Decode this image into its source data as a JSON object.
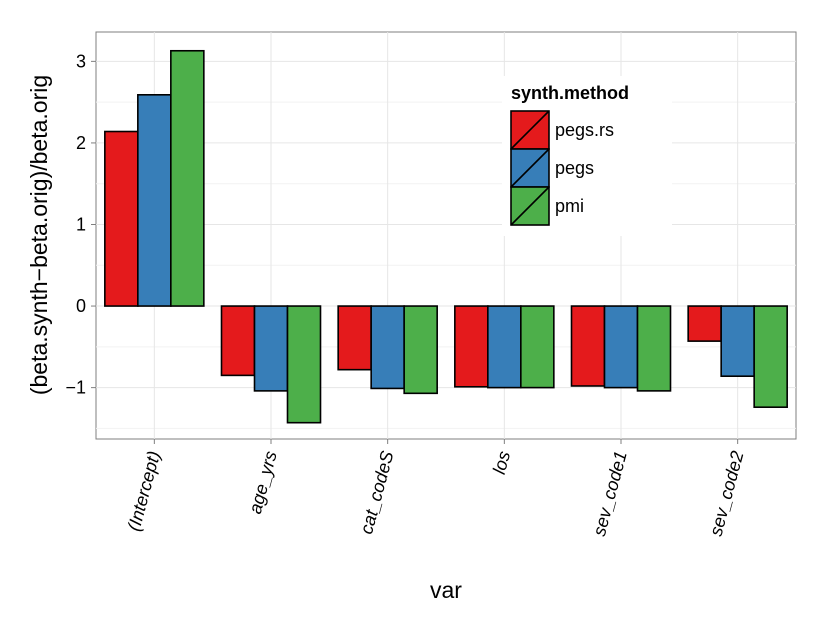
{
  "chart_data": {
    "type": "bar",
    "xlabel": "var",
    "ylabel": "(beta.synth−beta.orig)/beta.orig",
    "categories": [
      "(Intercept)",
      "age_yrs",
      "cat_codeS",
      "los",
      "sev_code1",
      "sev_code2"
    ],
    "series": [
      {
        "name": "pegs.rs",
        "color": "#e41a1c",
        "values": [
          2.14,
          -0.85,
          -0.78,
          -0.99,
          -0.98,
          -0.43
        ]
      },
      {
        "name": "pegs",
        "color": "#377eb8",
        "values": [
          2.59,
          -1.04,
          -1.01,
          -1.0,
          -1.0,
          -0.86
        ]
      },
      {
        "name": "pmi",
        "color": "#4daf4a",
        "values": [
          3.13,
          -1.43,
          -1.07,
          -1.0,
          -1.04,
          -1.24
        ]
      }
    ],
    "ylim": [
      -1.63,
      3.36
    ],
    "yticks": [
      -1,
      0,
      1,
      2,
      3
    ],
    "ytick_labels": [
      "−1",
      "0",
      "1",
      "2",
      "3"
    ],
    "legend": {
      "title": "synth.method",
      "placement": "top-right"
    },
    "grid": true
  }
}
